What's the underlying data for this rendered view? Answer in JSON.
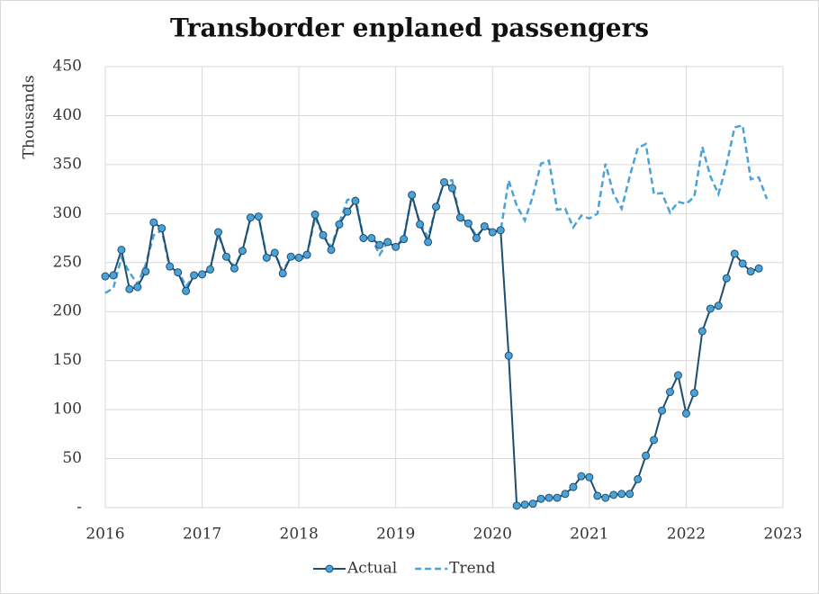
{
  "chart_data": {
    "type": "line",
    "title": "Transborder enplaned passengers",
    "y_label": "Thousands",
    "x": [
      "2016-01",
      "2016-02",
      "2016-03",
      "2016-04",
      "2016-05",
      "2016-06",
      "2016-07",
      "2016-08",
      "2016-09",
      "2016-10",
      "2016-11",
      "2016-12",
      "2017-01",
      "2017-02",
      "2017-03",
      "2017-04",
      "2017-05",
      "2017-06",
      "2017-07",
      "2017-08",
      "2017-09",
      "2017-10",
      "2017-11",
      "2017-12",
      "2018-01",
      "2018-02",
      "2018-03",
      "2018-04",
      "2018-05",
      "2018-06",
      "2018-07",
      "2018-08",
      "2018-09",
      "2018-10",
      "2018-11",
      "2018-12",
      "2019-01",
      "2019-02",
      "2019-03",
      "2019-04",
      "2019-05",
      "2019-06",
      "2019-07",
      "2019-08",
      "2019-09",
      "2019-10",
      "2019-11",
      "2019-12",
      "2020-01",
      "2020-02",
      "2020-03",
      "2020-04",
      "2020-05",
      "2020-06",
      "2020-07",
      "2020-08",
      "2020-09",
      "2020-10",
      "2020-11",
      "2020-12",
      "2021-01",
      "2021-02",
      "2021-03",
      "2021-04",
      "2021-05",
      "2021-06",
      "2021-07",
      "2021-08",
      "2021-09",
      "2021-10",
      "2021-11",
      "2021-12",
      "2022-01",
      "2022-02",
      "2022-03",
      "2022-04",
      "2022-05",
      "2022-06",
      "2022-07",
      "2022-08",
      "2022-09",
      "2022-10",
      "2022-11"
    ],
    "series": [
      {
        "name": "Actual",
        "color": "#1f4e6e",
        "marker_color": "#4aa3d8",
        "dashed": false,
        "markers": true,
        "values": [
          236,
          237,
          263,
          223,
          225,
          241,
          291,
          285,
          246,
          240,
          221,
          237,
          238,
          243,
          281,
          256,
          244,
          262,
          296,
          297,
          255,
          260,
          239,
          256,
          255,
          258,
          299,
          278,
          263,
          289,
          302,
          313,
          275,
          275,
          268,
          271,
          266,
          274,
          319,
          289,
          271,
          307,
          332,
          326,
          296,
          290,
          275,
          287,
          281,
          283,
          155,
          2,
          3,
          4,
          9,
          10,
          10,
          14,
          21,
          32,
          31,
          12,
          10,
          13,
          14,
          14,
          29,
          53,
          69,
          99,
          118,
          135,
          96,
          117,
          180,
          203,
          206,
          234,
          259,
          249,
          241,
          244,
          null
        ]
      },
      {
        "name": "Trend",
        "color": "#4aa3d8",
        "dashed": true,
        "markers": false,
        "values": [
          219,
          224,
          255,
          240,
          228,
          248,
          278,
          283,
          244,
          242,
          226,
          236,
          238,
          244,
          279,
          256,
          246,
          262,
          295,
          297,
          256,
          260,
          241,
          256,
          252,
          257,
          296,
          278,
          266,
          290,
          314,
          316,
          275,
          275,
          258,
          271,
          266,
          276,
          318,
          290,
          276,
          306,
          333,
          334,
          293,
          291,
          277,
          286,
          283,
          282,
          334,
          308,
          293,
          318,
          351,
          354,
          304,
          305,
          286,
          298,
          295,
          300,
          351,
          320,
          305,
          338,
          367,
          371,
          320,
          321,
          301,
          312,
          310,
          317,
          368,
          338,
          320,
          350,
          388,
          390,
          335,
          337,
          315
        ]
      }
    ],
    "xlim": [
      2016,
      2023
    ],
    "xticks": [
      2016,
      2017,
      2018,
      2019,
      2020,
      2021,
      2022,
      2023
    ],
    "ylim": [
      0,
      450
    ],
    "yticks": [
      {
        "value": 0,
        "label": "-"
      },
      50,
      100,
      150,
      200,
      250,
      300,
      350,
      400,
      450
    ],
    "grid": true,
    "legend": "bottom"
  }
}
